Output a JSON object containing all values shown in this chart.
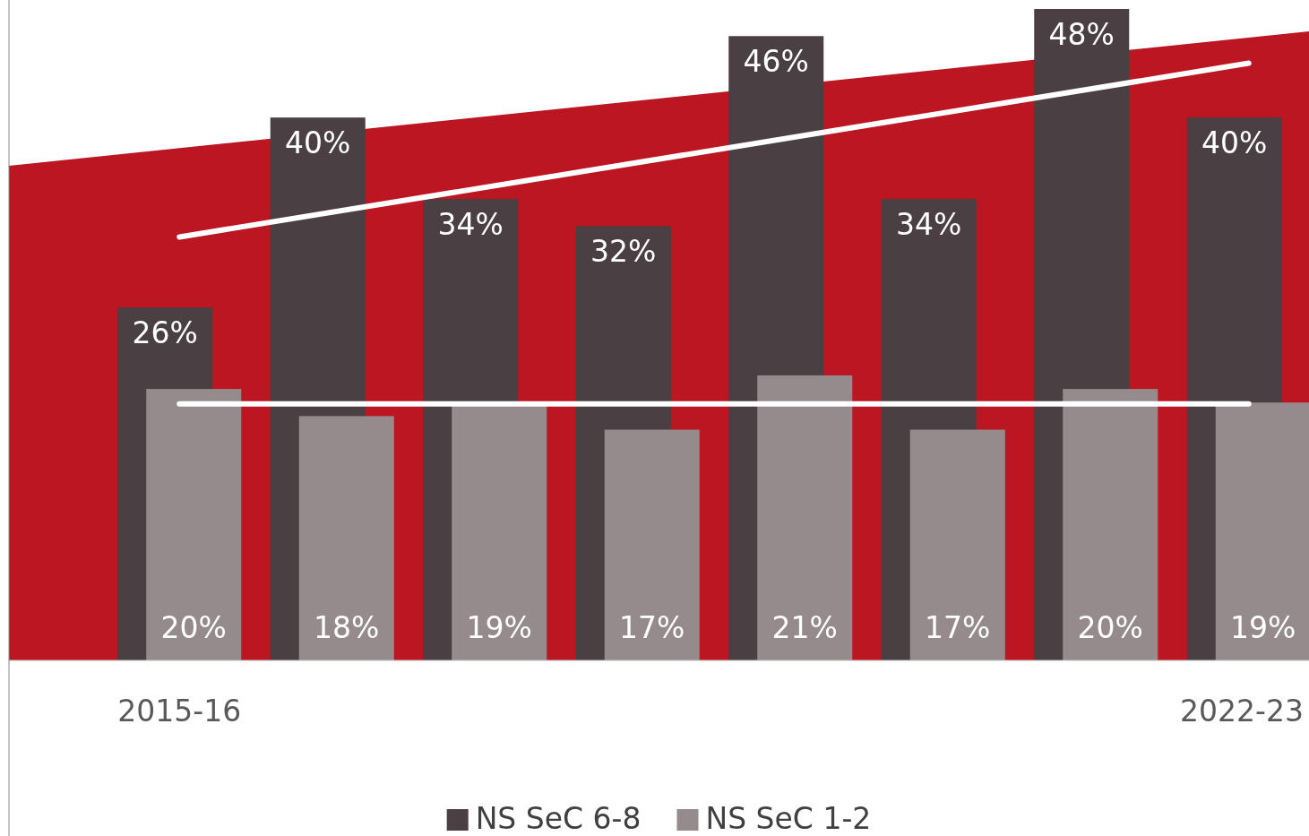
{
  "chart_data": {
    "type": "bar",
    "categories": [
      "2015-16",
      null,
      null,
      null,
      null,
      null,
      null,
      "2022-23"
    ],
    "series": [
      {
        "name": "NS SeC 6-8",
        "color": "#4a3f43",
        "values": [
          26,
          40,
          34,
          32,
          46,
          34,
          48,
          40
        ],
        "value_labels": [
          "26%",
          "40%",
          "34%",
          "32%",
          "46%",
          "34%",
          "48%",
          "40%"
        ]
      },
      {
        "name": "NS SeC 1-2",
        "color": "#958a8c",
        "values": [
          20,
          18,
          19,
          17,
          21,
          17,
          20,
          19
        ],
        "value_labels": [
          "20%",
          "18%",
          "19%",
          "17%",
          "21%",
          "17%",
          "20%",
          "19%"
        ]
      },
      {
        "type": "line",
        "color": "#ffffff",
        "x": [
          "2015-16",
          "2022-23"
        ],
        "values": [
          31.2,
          44.0
        ]
      },
      {
        "type": "line",
        "color": "#ffffff",
        "x": [
          "2015-16",
          "2022-23"
        ],
        "values": [
          18.9,
          18.9
        ]
      }
    ],
    "legend": "bottom"
  }
}
